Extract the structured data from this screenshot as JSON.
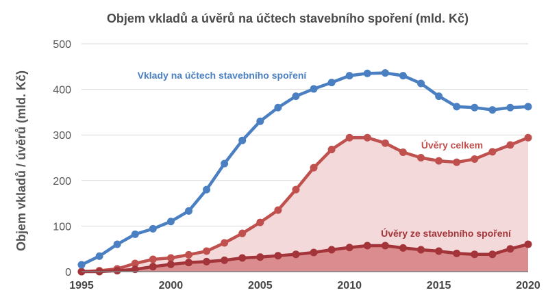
{
  "chart_data": {
    "type": "line",
    "title": "Objem vkladů a úvěrů na účtech stavebního spoření  (mld. Kč)",
    "ylabel": "Objem vkladů / úvěrů (mld. Kč)",
    "xlabel": "",
    "xlim": [
      1995,
      2020
    ],
    "ylim": [
      0,
      500
    ],
    "y_ticks": [
      0,
      100,
      200,
      300,
      400,
      500
    ],
    "x_ticks": [
      1995,
      2000,
      2005,
      2010,
      2015,
      2020
    ],
    "grid": true,
    "legend": "labels on chart",
    "x": [
      1995,
      1996,
      1997,
      1998,
      1999,
      2000,
      2001,
      2002,
      2003,
      2004,
      2005,
      2006,
      2007,
      2008,
      2009,
      2010,
      2011,
      2012,
      2013,
      2014,
      2015,
      2016,
      2017,
      2018,
      2019,
      2020
    ],
    "series": [
      {
        "name": "Vklady na účtech stavebního spoření",
        "color": "#4a7fc1",
        "values": [
          15,
          34,
          60,
          82,
          94,
          110,
          133,
          180,
          237,
          288,
          330,
          360,
          385,
          401,
          415,
          430,
          435,
          436,
          430,
          413,
          385,
          362,
          360,
          355,
          360,
          362
        ]
      },
      {
        "name": "Úvěry celkem",
        "color": "#c0504d",
        "fill": "#f3d9d9",
        "values": [
          0,
          2,
          6,
          18,
          27,
          30,
          37,
          45,
          63,
          84,
          108,
          135,
          180,
          228,
          268,
          294,
          294,
          282,
          262,
          250,
          243,
          240,
          247,
          263,
          278,
          294
        ]
      },
      {
        "name": "Úvěry ze stavebního spoření",
        "color": "#a3343a",
        "fill": "#db8c8e",
        "values": [
          0,
          0,
          2,
          5,
          11,
          16,
          20,
          22,
          25,
          30,
          32,
          35,
          38,
          42,
          48,
          53,
          57,
          57,
          52,
          48,
          45,
          40,
          38,
          38,
          50,
          60
        ]
      }
    ]
  }
}
